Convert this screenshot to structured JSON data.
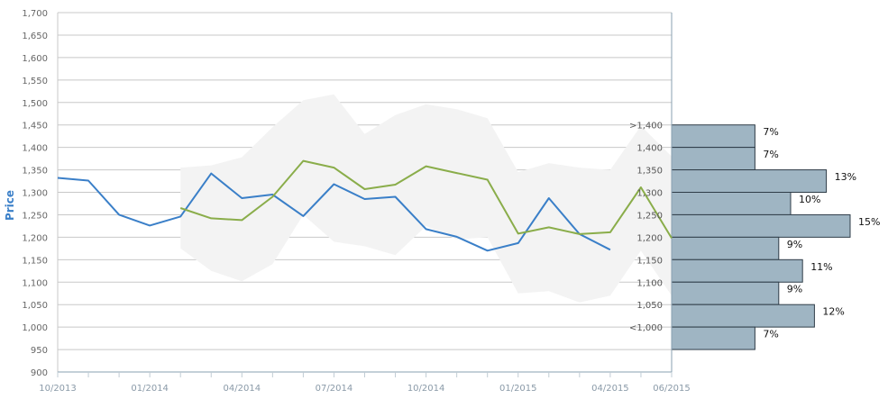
{
  "chart_data": {
    "type": "line",
    "ylabel": "Price",
    "ylim": [
      900,
      1700
    ],
    "yticks": [
      "900",
      "950",
      "1,000",
      "1,050",
      "1,100",
      "1,150",
      "1,200",
      "1,250",
      "1,300",
      "1,350",
      "1,400",
      "1,450",
      "1,500",
      "1,550",
      "1,600",
      "1,650",
      "1,700"
    ],
    "xticks": [
      "10/2013",
      "01/2014",
      "04/2014",
      "07/2014",
      "10/2014",
      "01/2015",
      "04/2015",
      "06/2015"
    ],
    "colors": {
      "blue": "#3a7fc8",
      "green": "#8aad4a",
      "band": "#f3f3f3",
      "bars": "#9fb5c3",
      "axis": "#8aa0b0"
    },
    "series": [
      {
        "key": "blue",
        "x": [
          "2013-10-01",
          "2013-11-01",
          "2013-12-01",
          "2014-01-01",
          "2014-02-01",
          "2014-03-01",
          "2014-04-01",
          "2014-05-01",
          "2014-06-01",
          "2014-07-01",
          "2014-08-01",
          "2014-09-01",
          "2014-10-01",
          "2014-11-01",
          "2014-12-01",
          "2015-01-01",
          "2015-02-01",
          "2015-03-01",
          "2015-04-01"
        ],
        "values": [
          1332,
          1326,
          1250,
          1226,
          1246,
          1342,
          1287,
          1295,
          1247,
          1318,
          1285,
          1290,
          1218,
          1201,
          1170,
          1187,
          1287,
          1207,
          1172
        ]
      },
      {
        "key": "green",
        "x": [
          "2014-02-01",
          "2014-03-01",
          "2014-04-01",
          "2014-05-01",
          "2014-06-01",
          "2014-07-01",
          "2014-08-01",
          "2014-09-01",
          "2014-10-01",
          "2014-11-01",
          "2014-12-01",
          "2015-01-01",
          "2015-02-01",
          "2015-03-01",
          "2015-04-01",
          "2015-05-01",
          "2015-06-01"
        ],
        "values": [
          1265,
          1242,
          1238,
          1290,
          1370,
          1355,
          1307,
          1317,
          1358,
          1343,
          1328,
          1208,
          1222,
          1207,
          1211,
          1311,
          1198
        ]
      }
    ],
    "band": {
      "x": [
        "2014-02-01",
        "2014-03-01",
        "2014-04-01",
        "2014-05-01",
        "2014-06-01",
        "2014-07-01",
        "2014-08-01",
        "2014-09-01",
        "2014-10-01",
        "2014-11-01",
        "2014-12-01",
        "2015-01-01",
        "2015-02-01",
        "2015-03-01",
        "2015-04-01",
        "2015-05-01",
        "2015-06-01"
      ],
      "upper": [
        1355,
        1360,
        1378,
        1445,
        1505,
        1518,
        1430,
        1472,
        1496,
        1485,
        1465,
        1345,
        1365,
        1355,
        1350,
        1448,
        1380
      ],
      "lower": [
        1175,
        1125,
        1102,
        1140,
        1250,
        1190,
        1180,
        1160,
        1225,
        1195,
        1200,
        1075,
        1080,
        1055,
        1070,
        1170,
        1070
      ]
    },
    "distribution": [
      {
        "label": ">1,400",
        "pct": "7%",
        "value": 7
      },
      {
        "label": "1,400",
        "pct": "7%",
        "value": 7
      },
      {
        "label": "1,350",
        "pct": "13%",
        "value": 13
      },
      {
        "label": "1,300",
        "pct": "10%",
        "value": 10
      },
      {
        "label": "1,250",
        "pct": "15%",
        "value": 15
      },
      {
        "label": "1,200",
        "pct": "9%",
        "value": 9
      },
      {
        "label": "1,150",
        "pct": "11%",
        "value": 11
      },
      {
        "label": "1,100",
        "pct": "9%",
        "value": 9
      },
      {
        "label": "1,050",
        "pct": "12%",
        "value": 12
      },
      {
        "label": "<1,000",
        "pct": "7%",
        "value": 7
      }
    ]
  }
}
